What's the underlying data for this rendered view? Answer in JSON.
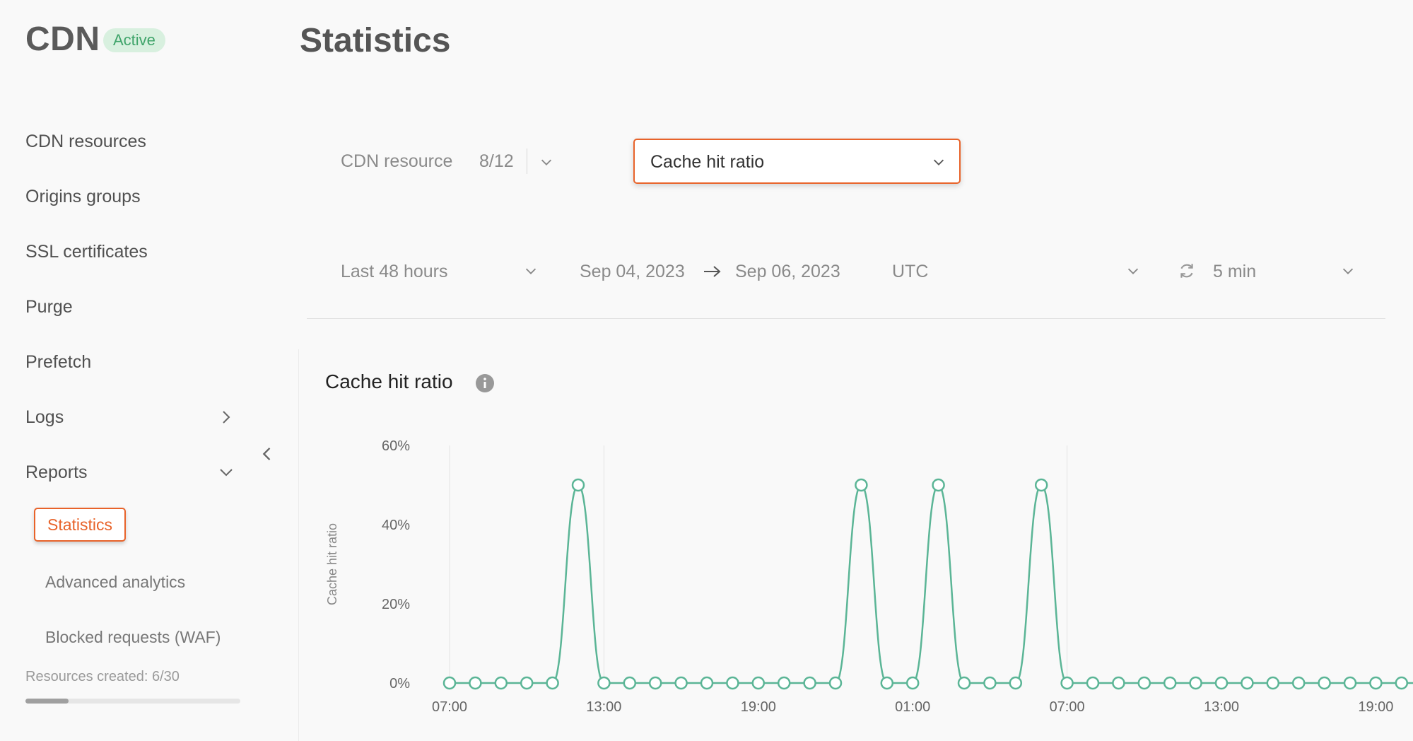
{
  "sidebar": {
    "brand": "CDN",
    "status_badge": "Active",
    "items": [
      {
        "label": "CDN resources"
      },
      {
        "label": "Origins groups"
      },
      {
        "label": "SSL certificates"
      },
      {
        "label": "Purge"
      },
      {
        "label": "Prefetch"
      },
      {
        "label": "Logs"
      },
      {
        "label": "Reports"
      }
    ],
    "subitems": [
      {
        "label": "Statistics"
      },
      {
        "label": "Advanced analytics"
      },
      {
        "label": "Blocked requests (WAF)"
      }
    ],
    "resources_created": "Resources created: 6/30",
    "resources_progress": 0.2
  },
  "page": {
    "title": "Statistics"
  },
  "filters": {
    "resource_label": "CDN resource",
    "resource_count": "8/12",
    "metric": "Cache hit ratio",
    "period": "Last 48 hours",
    "date_from": "Sep 04, 2023",
    "date_to": "Sep 06, 2023",
    "timezone": "UTC",
    "refresh_interval": "5 min"
  },
  "chart": {
    "title": "Cache hit ratio"
  },
  "colors": {
    "accent": "#e8632a",
    "series": "#5bb596",
    "badge_bg": "#d8f0df",
    "badge_text": "#3fa46a"
  },
  "chart_data": {
    "type": "line",
    "title": "Cache hit ratio",
    "xlabel": "",
    "ylabel": "Cache hit ratio",
    "y_ticks": [
      "0%",
      "20%",
      "40%",
      "60%"
    ],
    "ylim": [
      0,
      60
    ],
    "x_tick_labels": [
      "07:00",
      "13:00",
      "19:00",
      "01:00",
      "07:00",
      "13:00",
      "19:00"
    ],
    "x_tick_index": [
      0,
      6,
      12,
      18,
      24,
      30,
      36
    ],
    "grid": "vertical at 07:00 / 13:00 and 01:00 / 07:00",
    "series": [
      {
        "values": [
          0,
          0,
          0,
          0,
          0,
          50,
          0,
          0,
          0,
          0,
          0,
          0,
          0,
          0,
          0,
          0,
          50,
          0,
          0,
          50,
          0,
          0,
          0,
          50,
          0,
          0,
          0,
          0,
          0,
          0,
          0,
          0,
          0,
          0,
          0,
          0,
          0,
          0,
          0,
          0,
          0,
          0
        ]
      }
    ]
  }
}
